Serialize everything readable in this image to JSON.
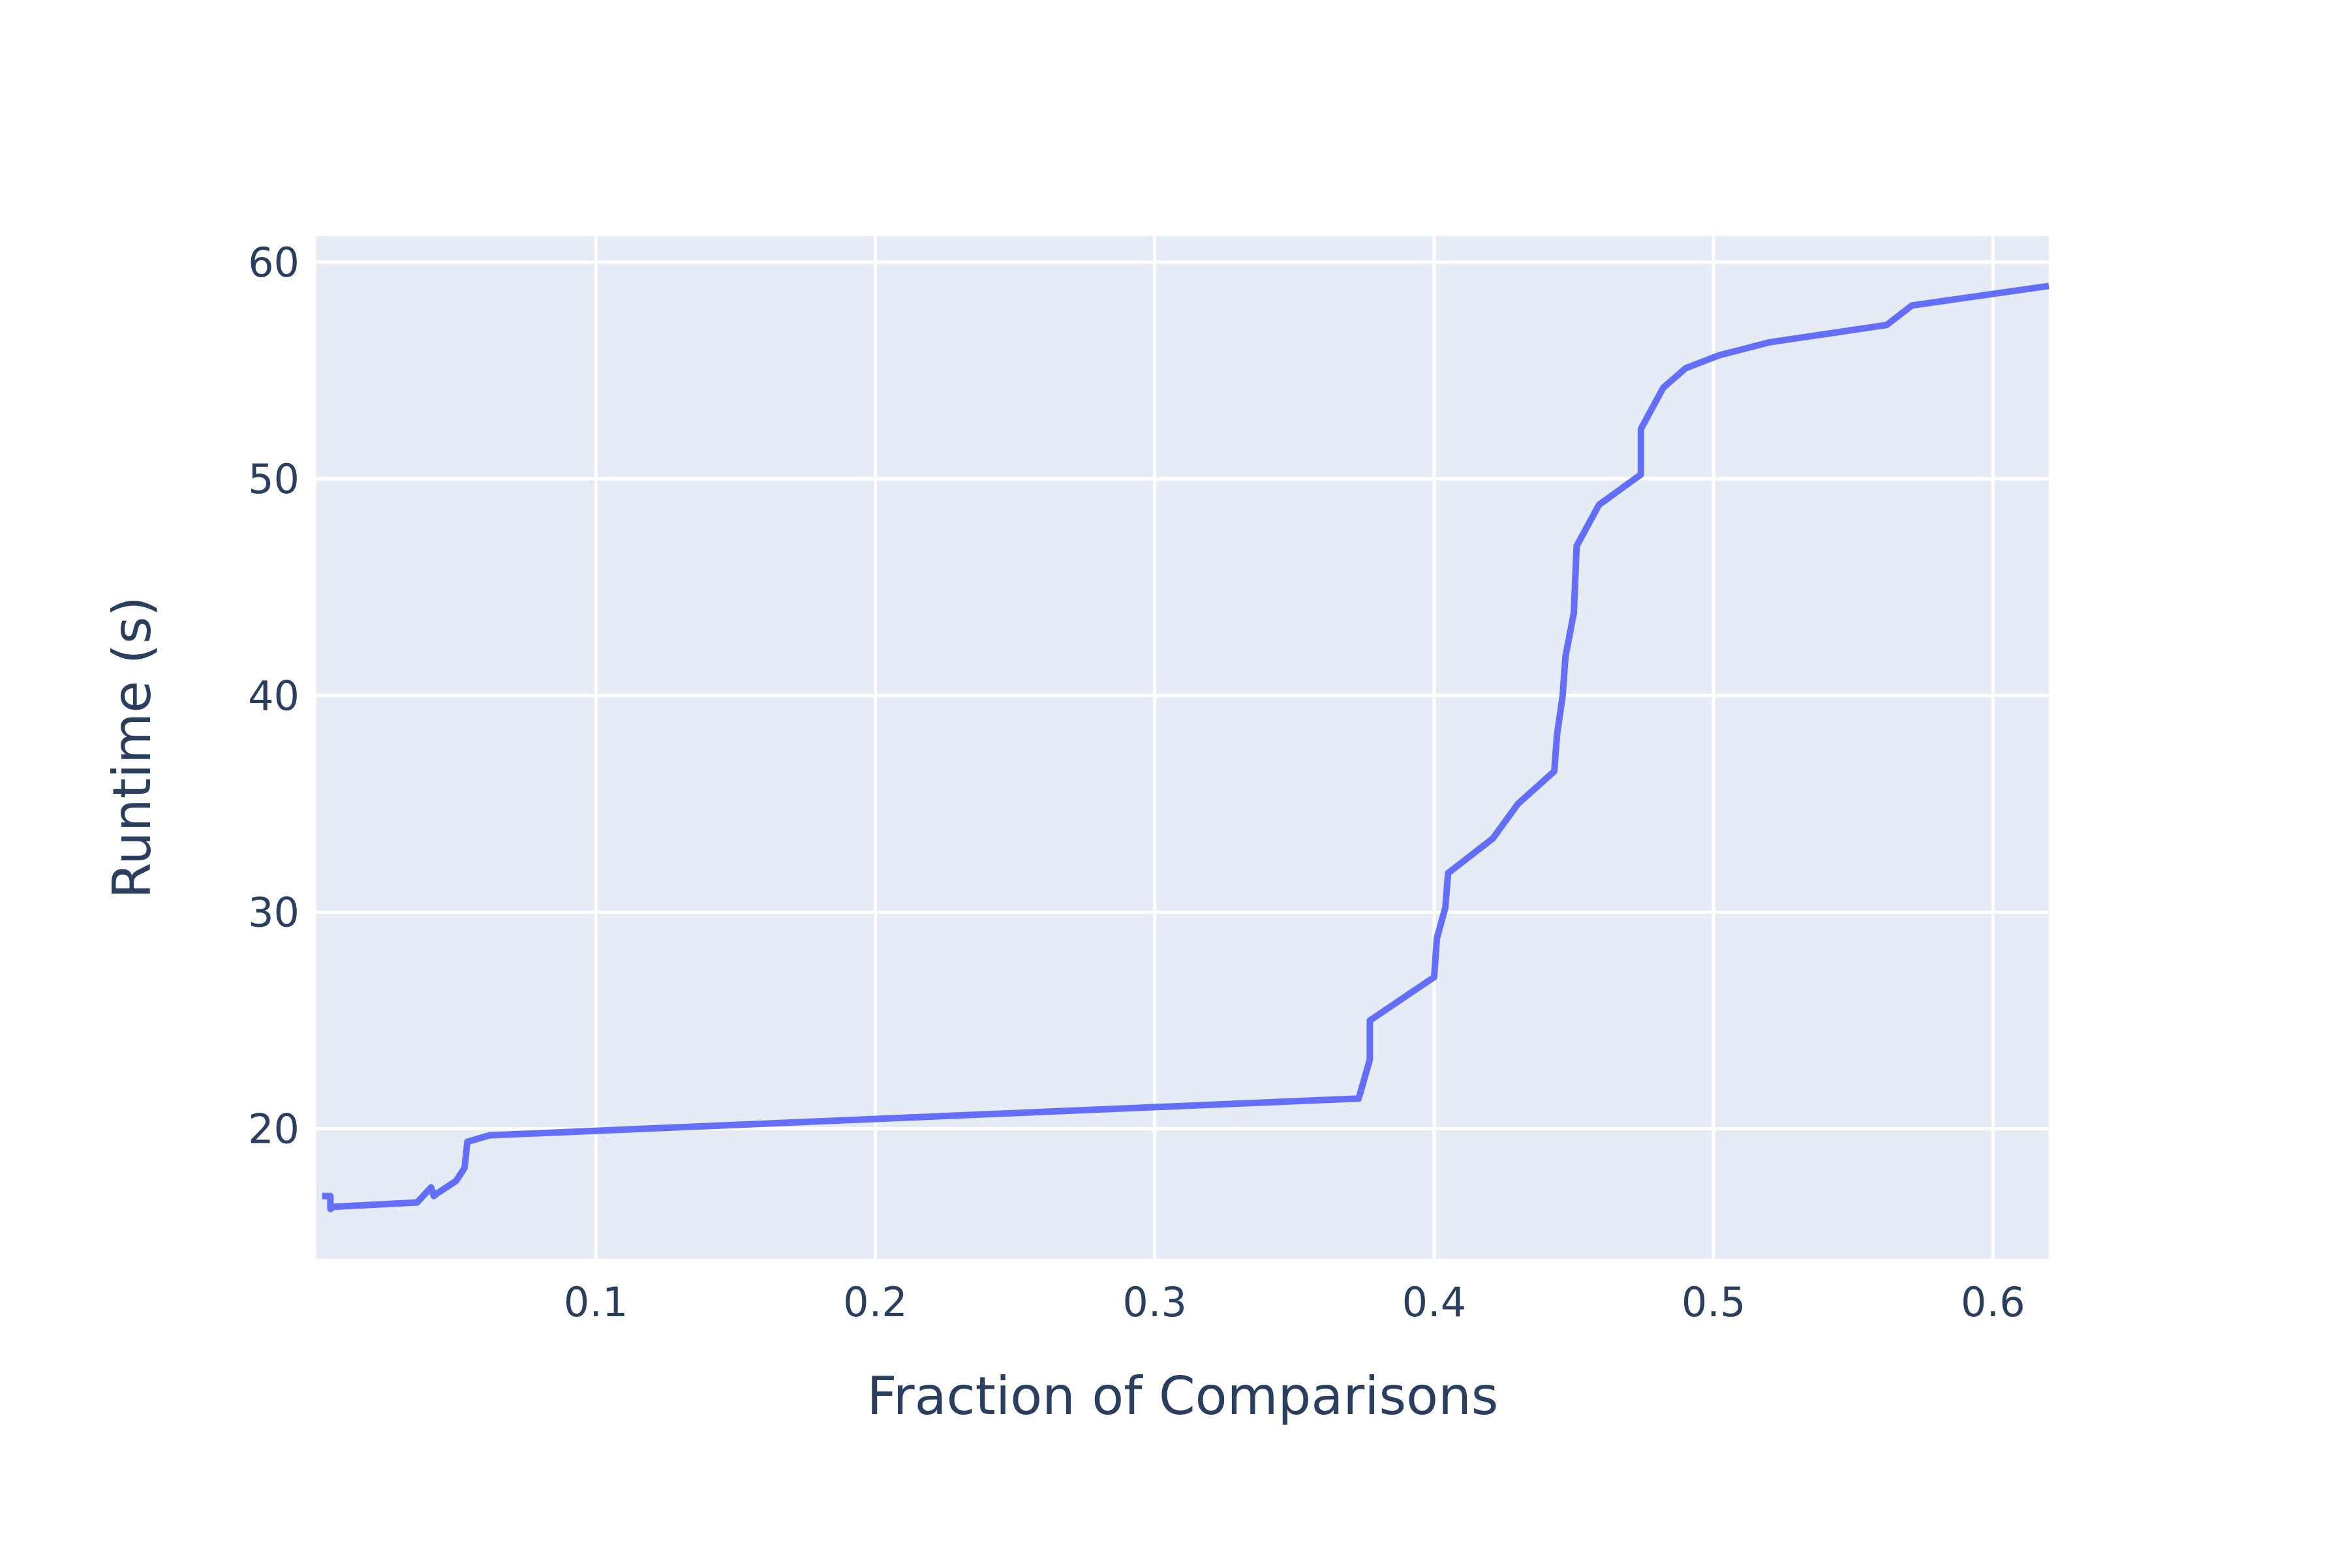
{
  "chart_data": {
    "type": "line",
    "title": "",
    "xlabel": "Fraction of Comparisons",
    "ylabel": "Runtime (s)",
    "xlim": [
      0.0,
      0.62
    ],
    "ylim": [
      14,
      61.2
    ],
    "xticks": [
      0.1,
      0.2,
      0.3,
      0.4,
      0.5,
      0.6
    ],
    "xtick_labels": [
      "0.1",
      "0.2",
      "0.3",
      "0.4",
      "0.5",
      "0.6"
    ],
    "yticks": [
      20,
      30,
      40,
      50,
      60
    ],
    "ytick_labels": [
      "20",
      "30",
      "40",
      "50",
      "60"
    ],
    "grid": true,
    "legend": "none",
    "colors": {
      "line": "#636efa",
      "plot_bg": "#e5ecf6",
      "grid": "#ffffff",
      "text": "#2a3f5f",
      "paper_bg": "#ffffff"
    },
    "series": [
      {
        "x": [
          0.002,
          0.005,
          0.005,
          0.006,
          0.036,
          0.041,
          0.042,
          0.043,
          0.05,
          0.053,
          0.054,
          0.062,
          0.373,
          0.377,
          0.377,
          0.4,
          0.401,
          0.404,
          0.405,
          0.421,
          0.43,
          0.443,
          0.444,
          0.446,
          0.447,
          0.45,
          0.451,
          0.459,
          0.474,
          0.474,
          0.482,
          0.49,
          0.502,
          0.52,
          0.562,
          0.571,
          0.62
        ],
        "y": [
          16.9,
          16.9,
          16.3,
          16.4,
          16.6,
          17.3,
          16.9,
          17.0,
          17.6,
          18.2,
          19.4,
          19.7,
          21.4,
          23.2,
          25.0,
          27.0,
          28.8,
          30.2,
          31.8,
          33.4,
          35.0,
          36.5,
          38.2,
          40.0,
          41.8,
          43.8,
          46.9,
          48.8,
          50.2,
          52.3,
          54.2,
          55.1,
          55.7,
          56.3,
          57.1,
          58.0,
          58.9
        ]
      }
    ]
  }
}
